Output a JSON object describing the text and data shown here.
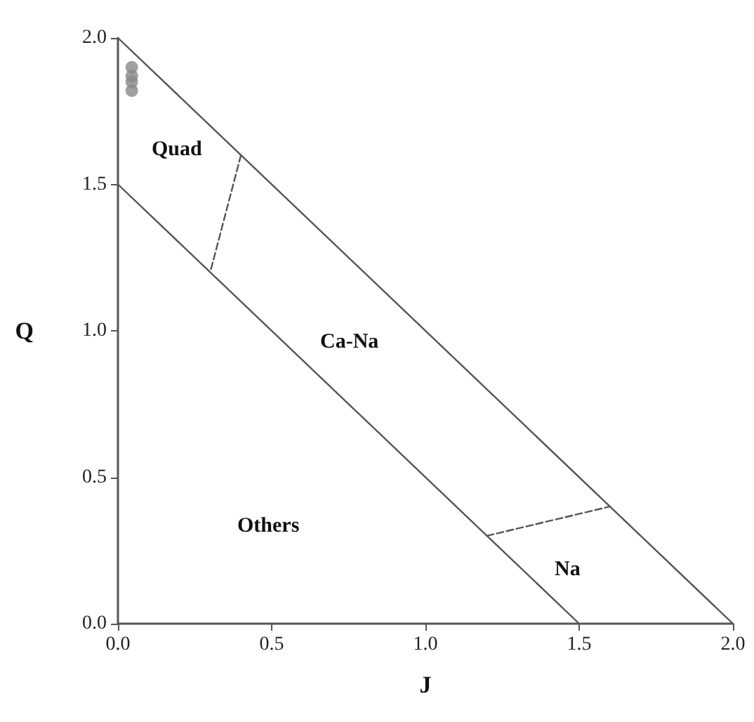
{
  "chart_data": {
    "type": "line",
    "xlabel": "J",
    "ylabel": "Q",
    "xlim": [
      0,
      2
    ],
    "ylim": [
      0,
      2
    ],
    "xticks": [
      {
        "value": 0,
        "label": "0.0"
      },
      {
        "value": 0.5,
        "label": "0.5"
      },
      {
        "value": 1,
        "label": "1.0"
      },
      {
        "value": 1.5,
        "label": "1.5"
      },
      {
        "value": 2,
        "label": "2.0"
      }
    ],
    "yticks": [
      {
        "value": 0,
        "label": "0.0"
      },
      {
        "value": 0.5,
        "label": "0.5"
      },
      {
        "value": 1,
        "label": "1.0"
      },
      {
        "value": 1.5,
        "label": "1.5"
      },
      {
        "value": 2,
        "label": "2.0"
      }
    ],
    "grid": false,
    "series": [
      {
        "color": "#555555",
        "line_style": "solid",
        "marker": "none",
        "x": [
          0,
          2
        ],
        "values": [
          2,
          0
        ]
      },
      {
        "color": "#555555",
        "line_style": "solid",
        "marker": "none",
        "x": [
          0,
          1.5
        ],
        "values": [
          1.5,
          0
        ]
      },
      {
        "color": "#555555",
        "line_style": "dashed",
        "marker": "none",
        "x": [
          0.4,
          0.3
        ],
        "values": [
          1.6,
          1.2
        ]
      },
      {
        "color": "#555555",
        "line_style": "dashed",
        "marker": "none",
        "x": [
          1.2,
          1.6
        ],
        "values": [
          0.3,
          0.4
        ]
      },
      {
        "type": "scatter",
        "color": "#888888",
        "marker": "circle",
        "x": [
          0.045,
          0.045,
          0.045,
          0.045
        ],
        "values": [
          1.9,
          1.87,
          1.85,
          1.82
        ]
      }
    ],
    "annotations": [
      "Quad",
      "Ca-Na",
      "Others",
      "Na"
    ]
  }
}
